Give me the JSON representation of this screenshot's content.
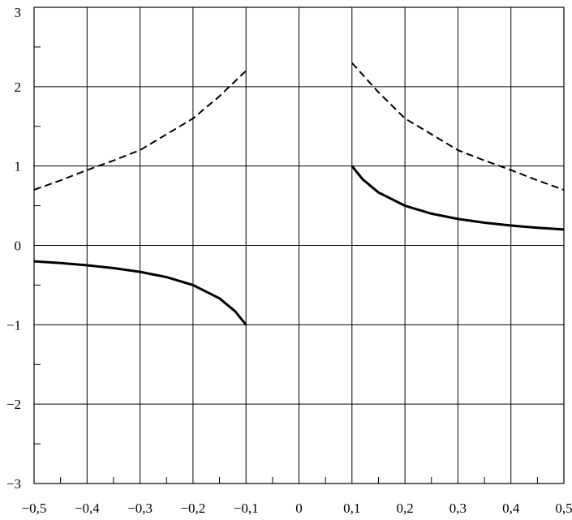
{
  "chart_data": {
    "type": "line",
    "title": "",
    "xlabel": "",
    "ylabel": "",
    "xlim": [
      -0.5,
      0.5
    ],
    "ylim": [
      -3,
      3
    ],
    "grid": true,
    "x_ticks": [
      -0.5,
      -0.4,
      -0.3,
      -0.2,
      -0.1,
      0,
      0.1,
      0.2,
      0.3,
      0.4,
      0.5
    ],
    "x_tick_labels": [
      "−0,5",
      "−0,4",
      "−0,3",
      "−0,2",
      "−0,1",
      "0",
      "0,1",
      "0,2",
      "0,3",
      "0,4",
      "0,5"
    ],
    "y_ticks": [
      -3,
      -2,
      -1,
      0,
      1,
      2,
      3
    ],
    "y_tick_labels": [
      "−3",
      "−2",
      "−1",
      "0",
      "1",
      "2",
      "3"
    ],
    "minor_tick_step": 0.05,
    "series": [
      {
        "style": "solid",
        "color": "#000000",
        "segments": [
          {
            "x": [
              -0.5,
              -0.45,
              -0.4,
              -0.35,
              -0.3,
              -0.25,
              -0.2,
              -0.15,
              -0.12,
              -0.1
            ],
            "y": [
              -0.2,
              -0.222,
              -0.25,
              -0.286,
              -0.333,
              -0.4,
              -0.5,
              -0.667,
              -0.833,
              -1.0
            ]
          },
          {
            "x": [
              0.1,
              0.12,
              0.15,
              0.2,
              0.25,
              0.3,
              0.35,
              0.4,
              0.45,
              0.5
            ],
            "y": [
              1.0,
              0.833,
              0.667,
              0.5,
              0.4,
              0.333,
              0.286,
              0.25,
              0.222,
              0.2
            ]
          }
        ]
      },
      {
        "style": "dashed",
        "color": "#000000",
        "segments": [
          {
            "x": [
              -0.5,
              -0.45,
              -0.4,
              -0.35,
              -0.3,
              -0.25,
              -0.2,
              -0.15,
              -0.1
            ],
            "y": [
              0.7,
              0.82,
              0.95,
              1.07,
              1.2,
              1.4,
              1.6,
              1.88,
              2.2
            ]
          },
          {
            "x": [
              0.1,
              0.15,
              0.2,
              0.25,
              0.3,
              0.35,
              0.4,
              0.45,
              0.5
            ],
            "y": [
              2.3,
              1.93,
              1.6,
              1.4,
              1.2,
              1.07,
              0.95,
              0.82,
              0.7
            ]
          }
        ]
      }
    ]
  }
}
